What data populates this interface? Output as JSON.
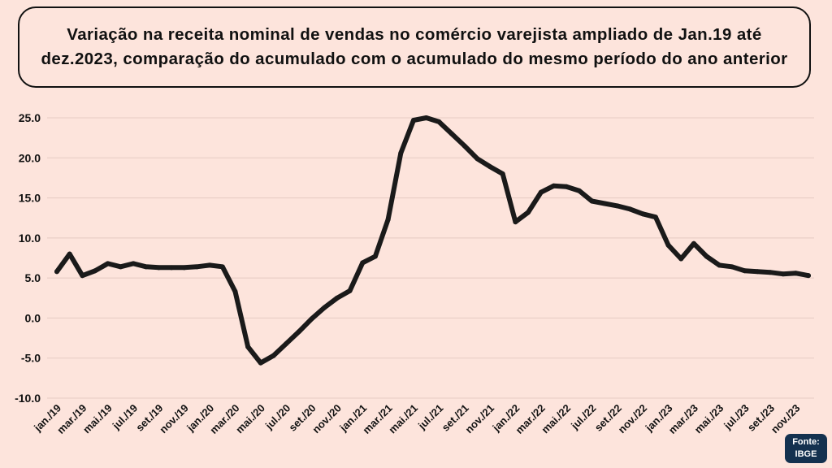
{
  "header": {
    "title": "Variação  na receita nominal de vendas no comércio varejista ampliado de Jan.19 até dez.2023, comparação do acumulado com o acumulado do mesmo período do ano anterior"
  },
  "source": {
    "line1": "Fonte:",
    "line2": "IBGE"
  },
  "colors": {
    "background": "#fde4dc",
    "line": "#1a1a1a",
    "grid": "#e6cbc3",
    "badge": "#14314f"
  },
  "chart_data": {
    "type": "line",
    "title": "Variação  na receita nominal de vendas no comércio varejista ampliado de Jan.19 até dez.2023, comparação do acumulado com o acumulado do mesmo período do ano anterior",
    "xlabel": "",
    "ylabel": "",
    "ylim": [
      -10,
      25
    ],
    "yticks": [
      "25.0",
      "20.0",
      "15.0",
      "10.0",
      "5.0",
      "0.0",
      "-5.0",
      "-10.0"
    ],
    "ytick_values": [
      25,
      20,
      15,
      10,
      5,
      0,
      -5,
      -10
    ],
    "grid": true,
    "legend": "none",
    "x": [
      "jan./19",
      "fev./19",
      "mar./19",
      "abr./19",
      "mai./19",
      "jun./19",
      "jul./19",
      "ago./19",
      "set./19",
      "out./19",
      "nov./19",
      "dez./19",
      "jan./20",
      "fev./20",
      "mar./20",
      "abr./20",
      "mai./20",
      "jun./20",
      "jul./20",
      "ago./20",
      "set./20",
      "out./20",
      "nov./20",
      "dez./20",
      "jan./21",
      "fev./21",
      "mar./21",
      "abr./21",
      "mai./21",
      "jun./21",
      "jul./21",
      "ago./21",
      "set./21",
      "out./21",
      "nov./21",
      "dez./21",
      "jan./22",
      "fev./22",
      "mar./22",
      "abr./22",
      "mai./22",
      "jun./22",
      "jul./22",
      "ago./22",
      "set./22",
      "out./22",
      "nov./22",
      "dez./22",
      "jan./23",
      "fev./23",
      "mar./23",
      "abr./23",
      "mai./23",
      "jun./23",
      "jul./23",
      "ago./23",
      "set./23",
      "out./23",
      "nov./23",
      "dez./23"
    ],
    "xticks_shown": [
      "jan./19",
      "mar./19",
      "mai./19",
      "jul./19",
      "set./19",
      "nov./19",
      "jan./20",
      "mar./20",
      "mai./20",
      "jul./20",
      "set./20",
      "nov./20",
      "jan./21",
      "mar./21",
      "mai./21",
      "jul./21",
      "set./21",
      "nov./21",
      "jan./22",
      "mar./22",
      "mai./22",
      "jul./22",
      "set./22",
      "nov./22",
      "jan./23",
      "mar./23",
      "mai./23",
      "jul./23",
      "set./23",
      "nov./23"
    ],
    "series": [
      {
        "values": [
          5.8,
          8.0,
          5.3,
          5.9,
          6.8,
          6.4,
          6.8,
          6.4,
          6.3,
          6.3,
          6.3,
          6.4,
          6.6,
          6.4,
          3.3,
          -3.6,
          -5.6,
          -4.7,
          -3.2,
          -1.7,
          -0.1,
          1.3,
          2.5,
          3.4,
          6.9,
          7.7,
          12.3,
          20.6,
          24.7,
          25.0,
          24.5,
          23.0,
          21.5,
          19.9,
          18.9,
          18.0,
          12.0,
          13.2,
          15.7,
          16.5,
          16.4,
          15.9,
          14.6,
          14.3,
          14.0,
          13.6,
          13.0,
          12.6,
          9.1,
          7.4,
          9.3,
          7.7,
          6.6,
          6.4,
          5.9,
          5.8,
          5.7,
          5.5,
          5.6,
          5.3
        ]
      }
    ]
  }
}
